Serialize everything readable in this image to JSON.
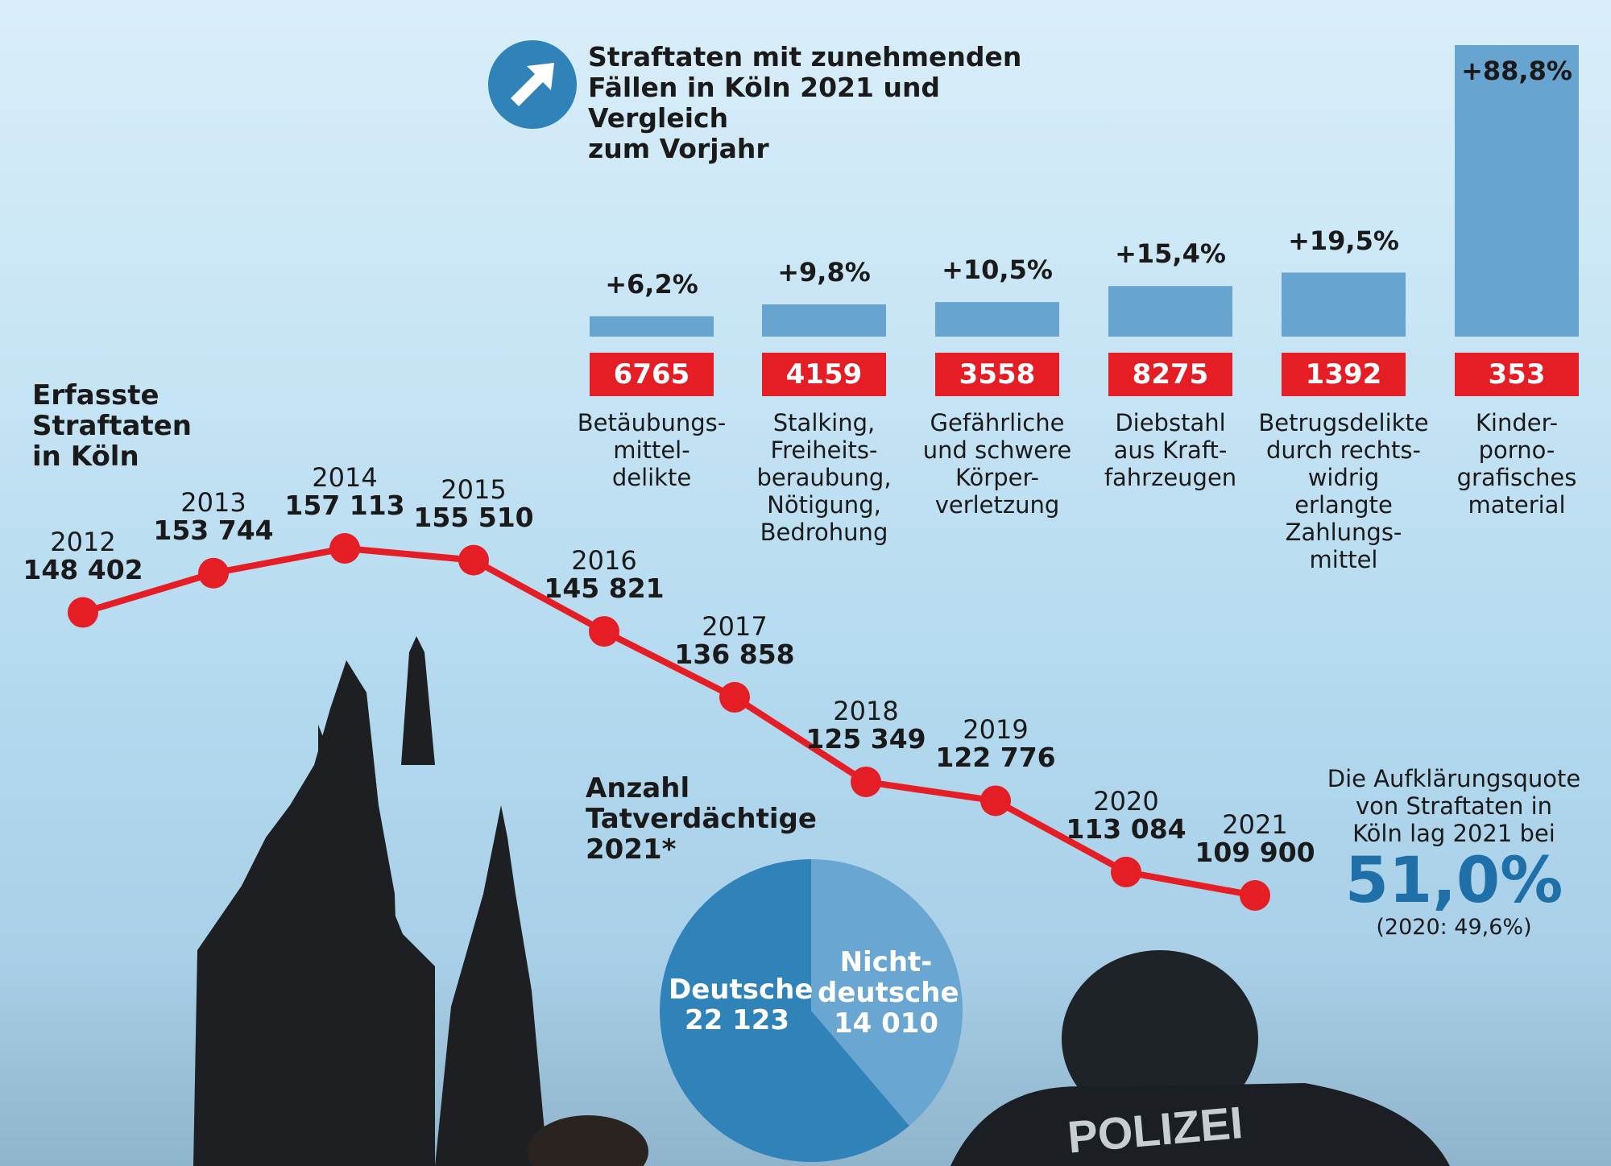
{
  "colors": {
    "accent_red": "#e51d25",
    "bar_blue": "#67a4cf",
    "pie_dark": "#2f83b8",
    "pie_light": "#6aa6d2",
    "quote_blue": "#1f6fa8"
  },
  "bar_section": {
    "icon": "arrow-up-right-icon",
    "title_lines": [
      "Straftaten mit zunehmenden",
      "Fällen in Köln 2021 und Vergleich",
      "zum Vorjahr"
    ]
  },
  "line_section": {
    "title_lines": [
      "Erfasste",
      "Straftaten",
      "in Köln"
    ]
  },
  "pie_section": {
    "title_lines": [
      "Anzahl",
      "Tatverdächtige",
      "2021*"
    ]
  },
  "quote": {
    "text_lines": [
      "Die Aufklärungsquote",
      "von Straftaten in",
      "Köln lag 2021 bei"
    ],
    "value": "51,0%",
    "previous": "(2020: 49,6%)"
  },
  "photo_text": {
    "police_label": "POLIZEI"
  },
  "chart_data": [
    {
      "type": "bar",
      "categories": [
        [
          "Betäubungs-",
          "mittel-",
          "delikte"
        ],
        [
          "Stalking,",
          "Freiheits-",
          "beraubung,",
          "Nötigung,",
          "Bedrohung"
        ],
        [
          "Gefährliche",
          "und schwere",
          "Körper-",
          "verletzung"
        ],
        [
          "Diebstahl",
          "aus Kraft-",
          "fahrzeugen"
        ],
        [
          "Betrugsdelikte",
          "durch rechts-",
          "widrig erlangte",
          "Zahlungs-",
          "mittel"
        ],
        [
          "Kinder-",
          "porno-",
          "grafisches",
          "material"
        ]
      ],
      "values": [
        6.2,
        9.8,
        10.5,
        15.4,
        19.5,
        88.8
      ],
      "value_labels": [
        "+6,2%",
        "+9,8%",
        "+10,5%",
        "+15,4%",
        "+19,5%",
        "+88,8%"
      ],
      "counts": [
        "6765",
        "4159",
        "3558",
        "8275",
        "1392",
        "353"
      ],
      "ylim": [
        0,
        88.8
      ]
    },
    {
      "type": "line",
      "x": [
        "2012",
        "2013",
        "2014",
        "2015",
        "2016",
        "2017",
        "2018",
        "2019",
        "2020",
        "2021"
      ],
      "y": [
        148402,
        153744,
        157113,
        155510,
        145821,
        136858,
        125349,
        122776,
        113084,
        109900
      ],
      "y_labels": [
        "148 402",
        "153 744",
        "157 113",
        "155 510",
        "145 821",
        "136 858",
        "125 349",
        "122 776",
        "113 084",
        "109 900"
      ],
      "ylim": [
        109900,
        157113
      ]
    },
    {
      "type": "pie",
      "slices": [
        {
          "label_lines": [
            "Deutsche",
            "22 123"
          ],
          "value": 22123
        },
        {
          "label_lines": [
            "Nicht-",
            "deutsche",
            "14 010"
          ],
          "value": 14010
        }
      ]
    }
  ]
}
